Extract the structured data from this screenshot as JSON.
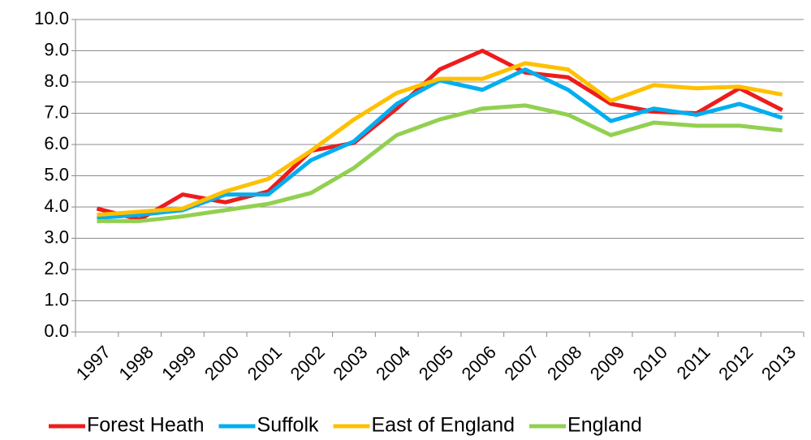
{
  "chart_data": {
    "type": "line",
    "categories": [
      "1997",
      "1998",
      "1999",
      "2000",
      "2001",
      "2002",
      "2003",
      "2004",
      "2005",
      "2006",
      "2007",
      "2008",
      "2009",
      "2010",
      "2011",
      "2012",
      "2013"
    ],
    "series": [
      {
        "name": "Forest Heath",
        "color": "#ee1c1c",
        "values": [
          3.95,
          3.6,
          4.4,
          4.15,
          4.5,
          5.8,
          6.05,
          7.15,
          8.4,
          9.0,
          8.3,
          8.15,
          7.3,
          7.05,
          7.0,
          7.8,
          7.1
        ]
      },
      {
        "name": "Suffolk",
        "color": "#00aeef",
        "values": [
          3.65,
          3.75,
          3.9,
          4.4,
          4.4,
          5.5,
          6.1,
          7.3,
          8.05,
          7.75,
          8.4,
          7.75,
          6.75,
          7.15,
          6.95,
          7.3,
          6.85
        ]
      },
      {
        "name": "East of England",
        "color": "#ffc000",
        "values": [
          3.75,
          3.85,
          3.95,
          4.5,
          4.9,
          5.8,
          6.8,
          7.65,
          8.1,
          8.1,
          8.6,
          8.4,
          7.4,
          7.9,
          7.8,
          7.85,
          7.6
        ]
      },
      {
        "name": "England",
        "color": "#92d050",
        "values": [
          3.55,
          3.55,
          3.7,
          3.9,
          4.1,
          4.45,
          5.25,
          6.3,
          6.8,
          7.15,
          7.25,
          6.95,
          6.3,
          6.7,
          6.6,
          6.6,
          6.45
        ]
      }
    ],
    "ylim": [
      0,
      10
    ],
    "yticks": [
      {
        "value": 0,
        "label": "0.0"
      },
      {
        "value": 1,
        "label": "1.0"
      },
      {
        "value": 2,
        "label": "2.0"
      },
      {
        "value": 3,
        "label": "3.0"
      },
      {
        "value": 4,
        "label": "4.0"
      },
      {
        "value": 5,
        "label": "5.0"
      },
      {
        "value": 6,
        "label": "6.0"
      },
      {
        "value": 7,
        "label": "7.0"
      },
      {
        "value": 8,
        "label": "8.0"
      },
      {
        "value": 9,
        "label": "9.0"
      },
      {
        "value": 10,
        "label": "10.0"
      }
    ],
    "grid": true,
    "legend": "bottom"
  }
}
